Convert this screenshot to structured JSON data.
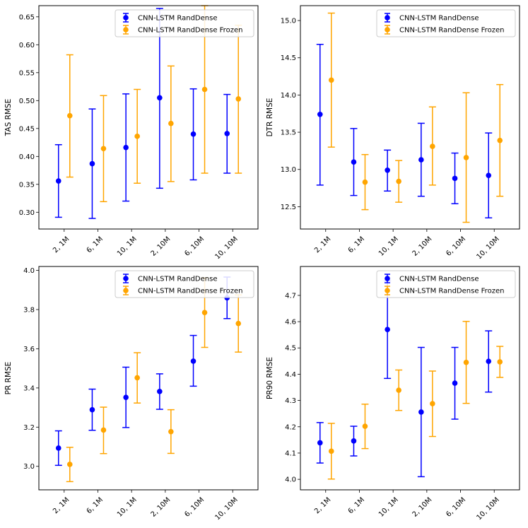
{
  "chart_data": [
    {
      "type": "errorbar",
      "ylabel": "TAS RMSE",
      "categories": [
        "2, 1M",
        "6, 1M",
        "10, 1M",
        "2, 10M",
        "6, 10M",
        "10, 10M"
      ],
      "ylim": [
        0.27,
        0.67
      ],
      "yticks": [
        0.3,
        0.35,
        0.4,
        0.45,
        0.5,
        0.55,
        0.6,
        0.65
      ],
      "ytick_labels": [
        "0.30",
        "0.35",
        "0.40",
        "0.45",
        "0.50",
        "0.55",
        "0.60",
        "0.65"
      ],
      "series": [
        {
          "name": "CNN-LSTM RandDense",
          "color": "#0000ff",
          "values": [
            0.356,
            0.387,
            0.416,
            0.505,
            0.44,
            0.441
          ],
          "low": [
            0.291,
            0.289,
            0.32,
            0.343,
            0.358,
            0.37
          ],
          "high": [
            0.421,
            0.485,
            0.512,
            0.665,
            0.521,
            0.511
          ]
        },
        {
          "name": "CNN-LSTM RandDense Frozen",
          "color": "#ffa500",
          "values": [
            0.473,
            0.414,
            0.436,
            0.459,
            0.52,
            0.503
          ],
          "low": [
            0.363,
            0.319,
            0.352,
            0.355,
            0.37,
            0.37
          ],
          "high": [
            0.582,
            0.509,
            0.52,
            0.562,
            0.67,
            0.635
          ]
        }
      ]
    },
    {
      "type": "errorbar",
      "ylabel": "DTR RMSE",
      "categories": [
        "2, 1M",
        "6, 1M",
        "10, 1M",
        "2, 10M",
        "6, 10M",
        "10, 10M"
      ],
      "ylim": [
        12.2,
        15.2
      ],
      "yticks": [
        12.5,
        13.0,
        13.5,
        14.0,
        14.5,
        15.0
      ],
      "ytick_labels": [
        "12.5",
        "13.0",
        "13.5",
        "14.0",
        "14.5",
        "15.0"
      ],
      "series": [
        {
          "name": "CNN-LSTM RandDense",
          "color": "#0000ff",
          "values": [
            13.74,
            13.1,
            12.99,
            13.13,
            12.88,
            12.92
          ],
          "low": [
            12.79,
            12.65,
            12.71,
            12.64,
            12.54,
            12.35
          ],
          "high": [
            14.68,
            13.55,
            13.26,
            13.62,
            13.22,
            13.49
          ]
        },
        {
          "name": "CNN-LSTM RandDense Frozen",
          "color": "#ffa500",
          "values": [
            14.2,
            12.83,
            12.84,
            13.31,
            13.16,
            13.39
          ],
          "low": [
            13.3,
            12.46,
            12.56,
            12.79,
            12.29,
            12.64
          ],
          "high": [
            15.1,
            13.2,
            13.12,
            13.84,
            14.03,
            14.14
          ]
        }
      ]
    },
    {
      "type": "errorbar",
      "ylabel": "PR RMSE",
      "categories": [
        "2, 1M",
        "6, 1M",
        "10, 1M",
        "2, 10M",
        "6, 10M",
        "10, 10M"
      ],
      "ylim": [
        2.88,
        4.02
      ],
      "yticks": [
        3.0,
        3.2,
        3.4,
        3.6,
        3.8,
        4.0
      ],
      "ytick_labels": [
        "3.0",
        "3.2",
        "3.4",
        "3.6",
        "3.8",
        "4.0"
      ],
      "series": [
        {
          "name": "CNN-LSTM RandDense",
          "color": "#0000ff",
          "values": [
            3.093,
            3.289,
            3.352,
            3.382,
            3.537,
            3.86
          ],
          "low": [
            3.005,
            3.184,
            3.198,
            3.291,
            3.409,
            3.754
          ],
          "high": [
            3.181,
            3.394,
            3.506,
            3.472,
            3.668,
            3.966
          ]
        },
        {
          "name": "CNN-LSTM RandDense Frozen",
          "color": "#ffa500",
          "values": [
            3.01,
            3.185,
            3.452,
            3.177,
            3.785,
            3.729
          ],
          "low": [
            2.922,
            3.065,
            3.323,
            3.066,
            3.607,
            3.583
          ],
          "high": [
            3.097,
            3.302,
            3.58,
            3.289,
            3.962,
            3.875
          ]
        }
      ]
    },
    {
      "type": "errorbar",
      "ylabel": "PR90 RMSE",
      "categories": [
        "2, 1M",
        "6, 1M",
        "10, 1M",
        "2, 10M",
        "6, 10M",
        "10, 10M"
      ],
      "ylim": [
        3.96,
        4.81
      ],
      "yticks": [
        4.0,
        4.1,
        4.2,
        4.3,
        4.4,
        4.5,
        4.6,
        4.7
      ],
      "ytick_labels": [
        "4.0",
        "4.1",
        "4.2",
        "4.3",
        "4.4",
        "4.5",
        "4.6",
        "4.7"
      ],
      "series": [
        {
          "name": "CNN-LSTM RandDense",
          "color": "#0000ff",
          "values": [
            4.139,
            4.146,
            4.57,
            4.256,
            4.366,
            4.449
          ],
          "low": [
            4.062,
            4.089,
            4.384,
            4.01,
            4.229,
            4.332
          ],
          "high": [
            4.216,
            4.202,
            4.755,
            4.502,
            4.502,
            4.565
          ]
        },
        {
          "name": "CNN-LSTM RandDense Frozen",
          "color": "#ffa500",
          "values": [
            4.107,
            4.202,
            4.339,
            4.288,
            4.445,
            4.447
          ],
          "low": [
            4.001,
            4.117,
            4.262,
            4.163,
            4.289,
            4.388
          ],
          "high": [
            4.213,
            4.286,
            4.416,
            4.412,
            4.601,
            4.506
          ]
        }
      ]
    }
  ]
}
